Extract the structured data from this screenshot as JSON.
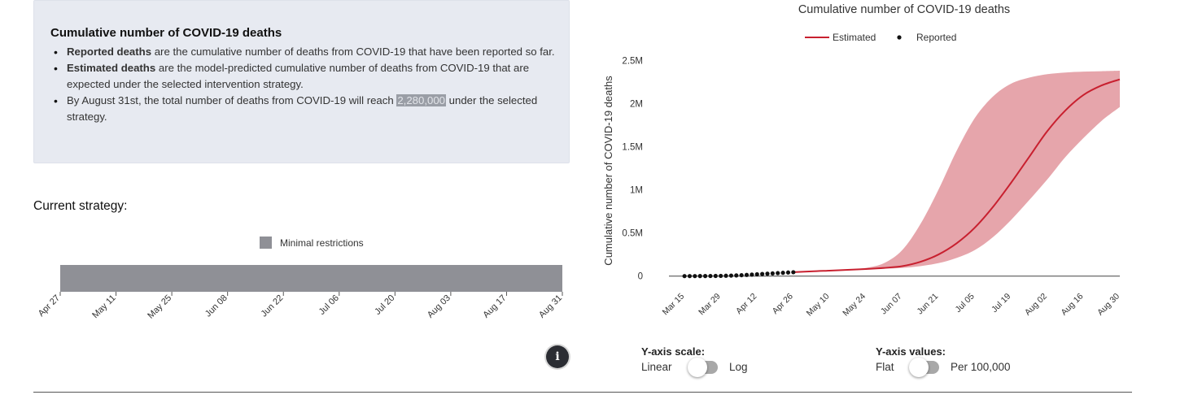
{
  "info": {
    "title": "Cumulative number of COVID-19 deaths",
    "items": [
      {
        "bold": "Reported deaths",
        "text": " are the cumulative number of deaths from COVID-19 that have been reported so far."
      },
      {
        "bold": "Estimated deaths",
        "text": " are the model-predicted cumulative number of deaths from COVID-19 that are expected under the selected intervention strategy."
      },
      {
        "pre": "By August 31st, the total number of deaths from COVID-19 will reach ",
        "highlight": "2,280,000",
        "post": " under the selected strategy."
      }
    ]
  },
  "strategy": {
    "title": "Current strategy:",
    "legend_label": "Minimal restrictions",
    "legend_color": "#8f9096",
    "timeline_ticks": [
      "Apr 27",
      "May 11",
      "May 25",
      "Jun 08",
      "Jun 22",
      "Jul 06",
      "Jul 20",
      "Aug 03",
      "Aug 17",
      "Aug 31"
    ]
  },
  "info_button": {
    "icon": "info-icon",
    "glyph": "i"
  },
  "controls": {
    "yscale": {
      "title": "Y-axis scale:",
      "left": "Linear",
      "right": "Log",
      "state": "Linear"
    },
    "yvalues": {
      "title": "Y-axis values:",
      "left": "Flat",
      "right": "Per 100,000",
      "state": "Flat"
    }
  },
  "chart_data": {
    "type": "line",
    "title": "Cumulative number of COVID-19 deaths",
    "ylabel": "Cumulative number of COVID-19 deaths",
    "xlabel": "",
    "x_range": [
      "2020-03-09",
      "2020-08-30"
    ],
    "ylim": [
      -50000,
      2550000
    ],
    "y_ticks": [
      0,
      500000,
      1000000,
      1500000,
      2000000,
      2500000
    ],
    "y_tick_labels": [
      "0",
      "0.5M",
      "1M",
      "1.5M",
      "2M",
      "2.5M"
    ],
    "x_tick_labels": [
      "Mar 15",
      "Mar 29",
      "Apr 12",
      "Apr 26",
      "May 10",
      "May 24",
      "Jun 07",
      "Jun 21",
      "Jul 05",
      "Jul 19",
      "Aug 02",
      "Aug 16",
      "Aug 30"
    ],
    "x_ticks": [
      "2020-03-15",
      "2020-03-29",
      "2020-04-12",
      "2020-04-26",
      "2020-05-10",
      "2020-05-24",
      "2020-06-07",
      "2020-06-21",
      "2020-07-05",
      "2020-07-19",
      "2020-08-02",
      "2020-08-16",
      "2020-08-30"
    ],
    "legend": {
      "position": "top-center"
    },
    "colors": {
      "estimated": "#c8202f",
      "band": "#e6a5ab",
      "reported": "#111111"
    },
    "series": [
      {
        "name": "Estimated",
        "style": "line",
        "x": [
          "2020-04-26",
          "2020-05-03",
          "2020-05-10",
          "2020-05-17",
          "2020-05-24",
          "2020-05-31",
          "2020-06-07",
          "2020-06-14",
          "2020-06-21",
          "2020-06-28",
          "2020-07-05",
          "2020-07-12",
          "2020-07-19",
          "2020-07-26",
          "2020-08-02",
          "2020-08-09",
          "2020-08-16",
          "2020-08-23",
          "2020-08-30"
        ],
        "y": [
          45000,
          55000,
          63000,
          72000,
          82000,
          95000,
          115000,
          165000,
          250000,
          380000,
          560000,
          800000,
          1080000,
          1380000,
          1680000,
          1920000,
          2100000,
          2210000,
          2280000
        ],
        "lower": [
          45000,
          55000,
          62000,
          70000,
          78000,
          85000,
          95000,
          115000,
          150000,
          210000,
          300000,
          450000,
          650000,
          880000,
          1120000,
          1380000,
          1600000,
          1800000,
          1960000
        ],
        "upper": [
          45000,
          56000,
          66000,
          78000,
          95000,
          150000,
          300000,
          600000,
          1000000,
          1450000,
          1830000,
          2080000,
          2230000,
          2300000,
          2340000,
          2360000,
          2370000,
          2375000,
          2380000
        ]
      },
      {
        "name": "Reported",
        "style": "markers",
        "x": [
          "2020-03-15",
          "2020-03-17",
          "2020-03-19",
          "2020-03-21",
          "2020-03-23",
          "2020-03-25",
          "2020-03-27",
          "2020-03-29",
          "2020-03-31",
          "2020-04-02",
          "2020-04-04",
          "2020-04-06",
          "2020-04-08",
          "2020-04-10",
          "2020-04-12",
          "2020-04-14",
          "2020-04-16",
          "2020-04-18",
          "2020-04-20",
          "2020-04-22",
          "2020-04-24",
          "2020-04-26"
        ],
        "y": [
          100,
          150,
          250,
          400,
          700,
          1100,
          1700,
          2600,
          3900,
          5600,
          7700,
          10300,
          13500,
          17000,
          20500,
          24000,
          27500,
          31000,
          34500,
          38000,
          41500,
          45000
        ]
      }
    ]
  }
}
